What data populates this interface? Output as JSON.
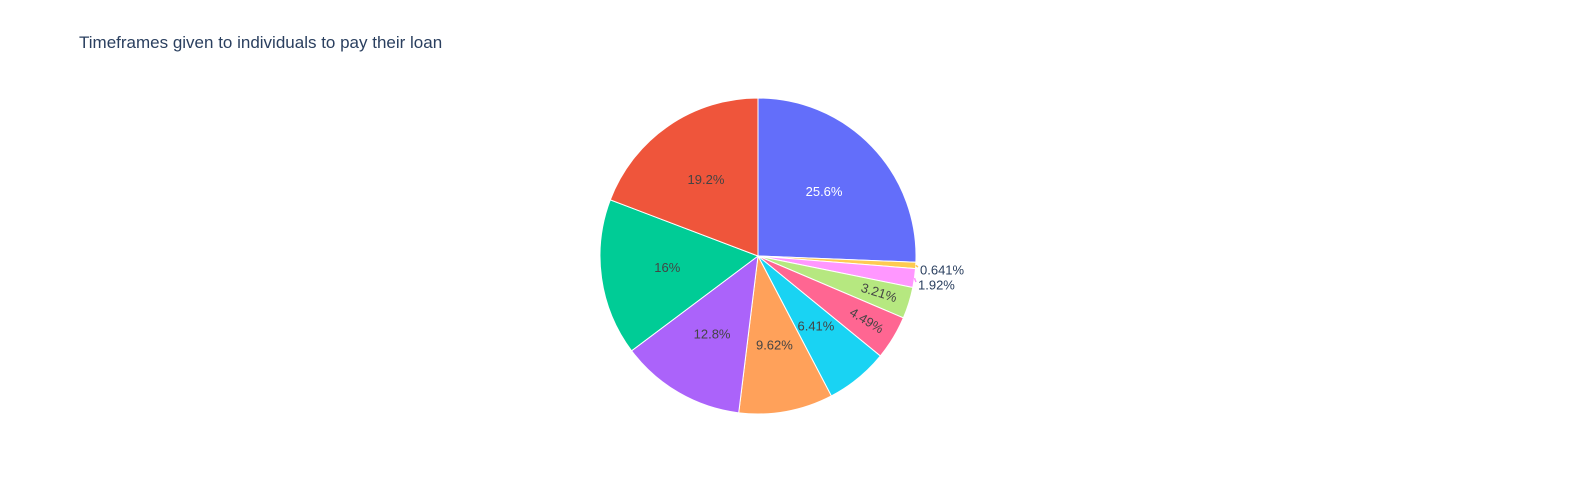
{
  "chart_data": {
    "type": "pie",
    "title": "Timeframes given to individuals to pay their loan",
    "slices": [
      {
        "value": 25.6,
        "label": "25.6%",
        "color": "#636efa",
        "text_color": "#ffffff",
        "placement": "inside"
      },
      {
        "value": 0.641,
        "label": "0.641%",
        "color": "#fecb52",
        "text_color": "#2a3f5f",
        "placement": "outside"
      },
      {
        "value": 1.92,
        "label": "1.92%",
        "color": "#ff97ff",
        "text_color": "#2a3f5f",
        "placement": "outside"
      },
      {
        "value": 3.21,
        "label": "3.21%",
        "color": "#b6e880",
        "text_color": "#444444",
        "placement": "inside-rotated"
      },
      {
        "value": 4.49,
        "label": "4.49%",
        "color": "#ff6692",
        "text_color": "#444444",
        "placement": "inside-rotated"
      },
      {
        "value": 6.41,
        "label": "6.41%",
        "color": "#19d3f3",
        "text_color": "#444444",
        "placement": "inside"
      },
      {
        "value": 9.62,
        "label": "9.62%",
        "color": "#ffa15a",
        "text_color": "#444444",
        "placement": "inside"
      },
      {
        "value": 12.8,
        "label": "12.8%",
        "color": "#ab63fa",
        "text_color": "#444444",
        "placement": "inside"
      },
      {
        "value": 16,
        "label": "16%",
        "color": "#00cc96",
        "text_color": "#444444",
        "placement": "inside"
      },
      {
        "value": 19.2,
        "label": "19.2%",
        "color": "#ef553b",
        "text_color": "#444444",
        "placement": "inside"
      }
    ],
    "direction": "clockwise",
    "start_angle_deg": 0,
    "legend": "none"
  }
}
